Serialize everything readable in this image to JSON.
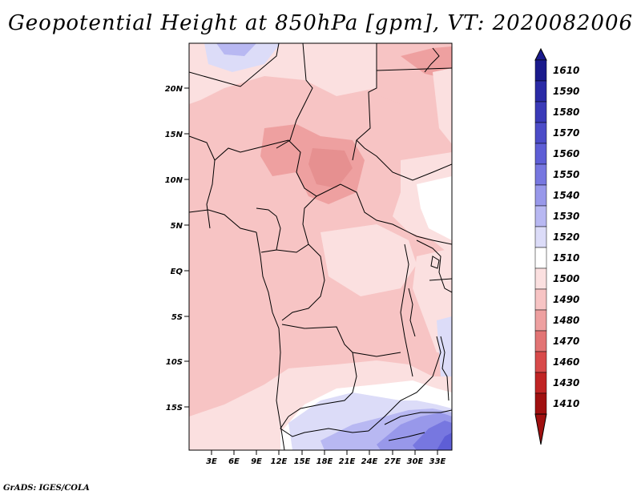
{
  "title": "Geopotential Height at 850hPa [gpm], VT: 2020082006",
  "credit": "GrADS: IGES/COLA",
  "map": {
    "lat_labels": [
      "20N",
      "15N",
      "10N",
      "5N",
      "EQ",
      "5S",
      "10S",
      "15S"
    ],
    "lon_labels": [
      "3E",
      "6E",
      "9E",
      "12E",
      "15E",
      "18E",
      "21E",
      "24E",
      "27E",
      "30E",
      "33E"
    ]
  },
  "colorbar": {
    "levels": [
      "1610",
      "1590",
      "1580",
      "1570",
      "1560",
      "1550",
      "1540",
      "1530",
      "1520",
      "1510",
      "1500",
      "1490",
      "1480",
      "1470",
      "1460",
      "1430",
      "1410"
    ],
    "colors": [
      "#1a1a8c",
      "#2a2aa6",
      "#3a3ab8",
      "#4c4cc8",
      "#5e5ed6",
      "#7777e0",
      "#9898ea",
      "#b8b8f2",
      "#dcdcf8",
      "#ffffff",
      "#fbe0e0",
      "#f7c4c4",
      "#eea0a0",
      "#e27474",
      "#d84a4a",
      "#c02424",
      "#a01010"
    ]
  }
}
